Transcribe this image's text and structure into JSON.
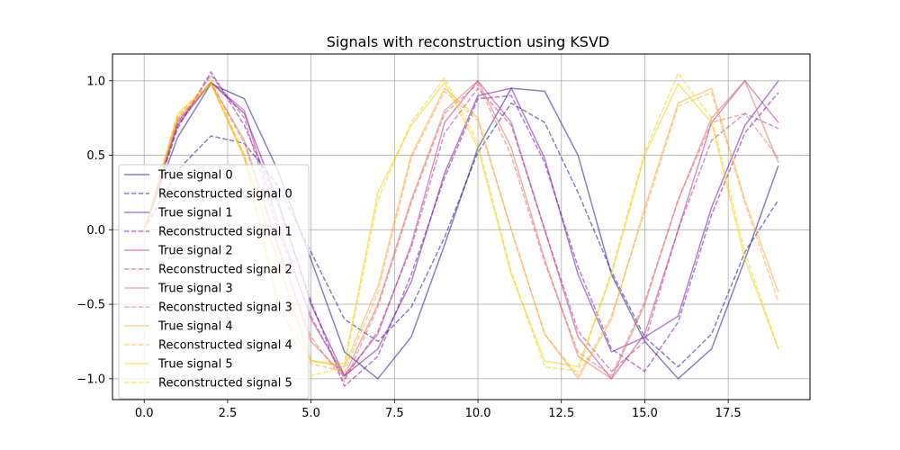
{
  "chart_data": {
    "type": "line",
    "title": "Signals with reconstruction using KSVD",
    "xlabel": "",
    "ylabel": "",
    "xlim": [
      -0.95,
      19.95
    ],
    "ylim": [
      -1.14,
      1.18
    ],
    "xticks": [
      0.0,
      2.5,
      5.0,
      7.5,
      10.0,
      12.5,
      15.0,
      17.5
    ],
    "xtick_labels": [
      "0.0",
      "2.5",
      "5.0",
      "7.5",
      "10.0",
      "12.5",
      "15.0",
      "17.5"
    ],
    "yticks": [
      -1.0,
      -0.5,
      0.0,
      0.5,
      1.0
    ],
    "ytick_labels": [
      "−1.0",
      "−0.5",
      "0.0",
      "0.5",
      "1.0"
    ],
    "grid": true,
    "legend_position": "lower-left",
    "x": [
      0,
      1,
      2,
      3,
      4,
      5,
      6,
      7,
      8,
      9,
      10,
      11,
      12,
      13,
      14,
      15,
      16,
      17,
      18,
      19
    ],
    "series": [
      {
        "name": "True signal 0",
        "style": "solid",
        "color": "#0d0887",
        "values": [
          0.0,
          0.62,
          0.98,
          0.88,
          0.4,
          -0.2,
          -0.82,
          -1.0,
          -0.72,
          -0.1,
          0.55,
          0.95,
          0.93,
          0.5,
          -0.3,
          -0.75,
          -1.0,
          -0.8,
          -0.2,
          0.43
        ]
      },
      {
        "name": "Reconstructed signal 0",
        "style": "dashed",
        "color": "#0d0887",
        "values": [
          0.0,
          0.4,
          0.63,
          0.58,
          0.3,
          -0.15,
          -0.6,
          -0.75,
          -0.52,
          -0.05,
          0.52,
          0.85,
          0.72,
          0.25,
          -0.28,
          -0.72,
          -0.92,
          -0.7,
          -0.15,
          0.2
        ]
      },
      {
        "name": "True signal 1",
        "style": "solid",
        "color": "#6a00a8",
        "values": [
          0.0,
          0.7,
          0.99,
          0.78,
          0.2,
          -0.5,
          -0.98,
          -0.8,
          -0.35,
          0.38,
          0.9,
          0.95,
          0.48,
          -0.3,
          -0.82,
          -0.72,
          -0.58,
          0.15,
          0.7,
          1.0
        ]
      },
      {
        "name": "Reconstructed signal 1",
        "style": "dashed",
        "color": "#6a00a8",
        "values": [
          0.0,
          0.68,
          1.06,
          0.7,
          0.18,
          -0.48,
          -1.05,
          -0.85,
          -0.3,
          0.35,
          0.88,
          0.9,
          0.45,
          -0.25,
          -0.8,
          -0.95,
          -0.62,
          0.1,
          0.65,
          0.92
        ]
      },
      {
        "name": "True signal 2",
        "style": "solid",
        "color": "#b12a90",
        "values": [
          0.0,
          0.72,
          0.99,
          0.8,
          0.05,
          -0.6,
          -0.98,
          -0.7,
          -0.1,
          0.72,
          1.0,
          0.72,
          0.0,
          -0.72,
          -1.0,
          -0.7,
          0.0,
          0.72,
          1.0,
          0.72
        ]
      },
      {
        "name": "Reconstructed signal 2",
        "style": "dashed",
        "color": "#b12a90",
        "values": [
          0.0,
          0.7,
          1.04,
          0.75,
          0.0,
          -0.58,
          -1.0,
          -0.68,
          -0.12,
          0.65,
          0.95,
          0.7,
          0.0,
          -0.68,
          -0.95,
          -0.75,
          0.0,
          0.6,
          0.78,
          0.68
        ]
      },
      {
        "name": "True signal 3",
        "style": "solid",
        "color": "#e16462",
        "values": [
          0.0,
          0.73,
          0.98,
          0.6,
          -0.1,
          -0.75,
          -0.98,
          -0.5,
          0.2,
          0.8,
          1.0,
          0.55,
          -0.2,
          -0.85,
          -1.0,
          -0.5,
          0.2,
          0.75,
          1.0,
          0.45
        ]
      },
      {
        "name": "Reconstructed signal 3",
        "style": "dashed",
        "color": "#e16462",
        "values": [
          0.0,
          0.74,
          0.99,
          0.58,
          -0.12,
          -0.72,
          -1.02,
          -0.52,
          0.18,
          0.78,
          0.98,
          0.5,
          -0.22,
          -0.82,
          -0.98,
          -0.48,
          0.2,
          0.72,
          0.78,
          0.48
        ]
      },
      {
        "name": "True signal 4",
        "style": "solid",
        "color": "#fca636",
        "values": [
          0.0,
          0.75,
          0.98,
          0.5,
          -0.2,
          -0.88,
          -0.92,
          -0.38,
          0.5,
          0.95,
          0.75,
          0.0,
          -0.7,
          -1.0,
          -0.6,
          0.15,
          0.85,
          0.95,
          0.2,
          -0.42
        ]
      },
      {
        "name": "Reconstructed signal 4",
        "style": "dashed",
        "color": "#fca636",
        "values": [
          0.0,
          0.76,
          0.99,
          0.48,
          -0.22,
          -0.9,
          -0.95,
          -0.42,
          0.48,
          0.93,
          0.73,
          0.0,
          -0.7,
          -0.98,
          -0.58,
          0.12,
          0.83,
          0.92,
          0.18,
          -0.48
        ]
      },
      {
        "name": "True signal 5",
        "style": "solid",
        "color": "#f0d000",
        "values": [
          0.0,
          0.78,
          0.98,
          0.48,
          -0.5,
          -0.88,
          -0.9,
          0.25,
          0.7,
          0.99,
          0.55,
          -0.3,
          -0.88,
          -0.92,
          -0.3,
          0.5,
          0.98,
          0.72,
          -0.2,
          -0.8
        ]
      },
      {
        "name": "Reconstructed signal 5",
        "style": "dashed",
        "color": "#f0d000",
        "values": [
          0.0,
          0.76,
          1.02,
          0.5,
          -0.48,
          -0.98,
          -0.92,
          0.2,
          0.72,
          1.02,
          0.58,
          -0.28,
          -0.92,
          -0.95,
          -0.28,
          0.52,
          1.05,
          0.75,
          -0.15,
          -0.8
        ]
      }
    ]
  }
}
